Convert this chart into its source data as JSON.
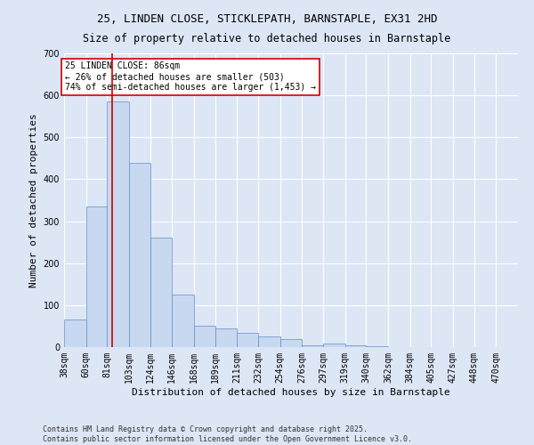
{
  "title_line1": "25, LINDEN CLOSE, STICKLEPATH, BARNSTAPLE, EX31 2HD",
  "title_line2": "Size of property relative to detached houses in Barnstaple",
  "xlabel": "Distribution of detached houses by size in Barnstaple",
  "ylabel": "Number of detached properties",
  "annotation_line1": "25 LINDEN CLOSE: 86sqm",
  "annotation_line2": "← 26% of detached houses are smaller (503)",
  "annotation_line3": "74% of semi-detached houses are larger (1,453) →",
  "property_size_sqm": 86,
  "bar_color": "#c8d8f0",
  "bar_edge_color": "#6090c8",
  "red_line_color": "#cc0000",
  "background_color": "#dce6f5",
  "grid_color": "#ffffff",
  "annotation_box_color": "#ffffff",
  "annotation_box_edge": "#cc0000",
  "footer_text": "Contains HM Land Registry data © Crown copyright and database right 2025.\nContains public sector information licensed under the Open Government Licence v3.0.",
  "bin_labels": [
    "38sqm",
    "60sqm",
    "81sqm",
    "103sqm",
    "124sqm",
    "146sqm",
    "168sqm",
    "189sqm",
    "211sqm",
    "232sqm",
    "254sqm",
    "276sqm",
    "297sqm",
    "319sqm",
    "340sqm",
    "362sqm",
    "384sqm",
    "405sqm",
    "427sqm",
    "448sqm",
    "470sqm"
  ],
  "bin_edges": [
    38,
    60,
    81,
    103,
    124,
    146,
    168,
    189,
    211,
    232,
    254,
    276,
    297,
    319,
    340,
    362,
    384,
    405,
    427,
    448,
    470
  ],
  "bar_heights": [
    65,
    335,
    585,
    440,
    260,
    125,
    50,
    45,
    35,
    25,
    20,
    5,
    8,
    5,
    3,
    1,
    1,
    0,
    0,
    1,
    0
  ],
  "ylim": [
    0,
    700
  ],
  "yticks": [
    0,
    100,
    200,
    300,
    400,
    500,
    600,
    700
  ],
  "title_fontsize": 9,
  "subtitle_fontsize": 8.5,
  "axis_label_fontsize": 8,
  "tick_fontsize": 7,
  "annotation_fontsize": 7,
  "footer_fontsize": 6
}
